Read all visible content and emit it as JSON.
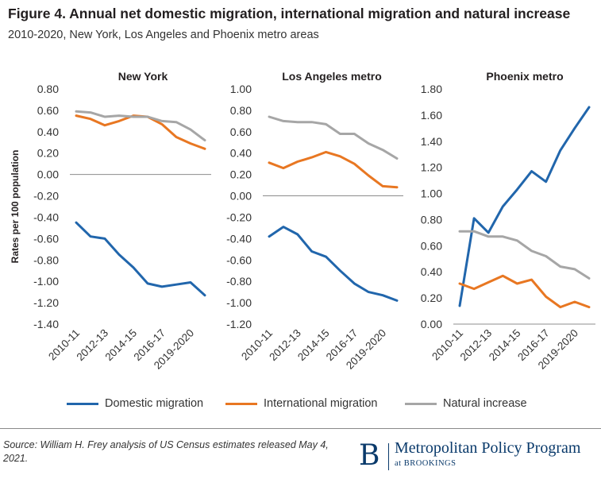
{
  "title": "Figure 4. Annual net domestic migration, international migration and natural increase",
  "subtitle": "2010-2020, New York, Los Angeles and Phoenix metro areas",
  "ylabel": "Rates per 100 population",
  "legend": [
    {
      "name": "Domestic migration",
      "color": "#2166ac"
    },
    {
      "name": "International migration",
      "color": "#e87722"
    },
    {
      "name": "Natural increase",
      "color": "#a6a6a6"
    }
  ],
  "source": "Source: William H. Frey analysis of US Census estimates released May 4, 2021.",
  "brand": {
    "logo": "B",
    "name": "Metropolitan Policy Program",
    "sub": "at BROOKINGS"
  },
  "chart_data": [
    {
      "type": "line",
      "title": "New York",
      "x_tick_labels": [
        "2010-11",
        "2012-13",
        "2014-15",
        "2016-17",
        "2019-2020"
      ],
      "yticks": [
        "0.80",
        "0.60",
        "0.40",
        "0.20",
        "0.00",
        "-0.20",
        "-0.40",
        "-0.60",
        "-0.80",
        "-1.00",
        "-1.20",
        "-1.40"
      ],
      "ylim": [
        -1.4,
        0.8
      ],
      "series": [
        {
          "name": "Domestic migration",
          "values": [
            -0.45,
            -0.58,
            -0.6,
            -0.75,
            -0.87,
            -1.02,
            -1.05,
            -1.03,
            -1.01,
            -1.13
          ]
        },
        {
          "name": "International migration",
          "values": [
            0.55,
            0.52,
            0.46,
            0.5,
            0.55,
            0.54,
            0.47,
            0.35,
            0.29,
            0.24
          ]
        },
        {
          "name": "Natural increase",
          "values": [
            0.59,
            0.58,
            0.54,
            0.55,
            0.54,
            0.54,
            0.5,
            0.49,
            0.42,
            0.32
          ]
        }
      ]
    },
    {
      "type": "line",
      "title": "Los Angeles metro",
      "x_tick_labels": [
        "2010-11",
        "2012-13",
        "2014-15",
        "2016-17",
        "2019-2020"
      ],
      "yticks": [
        "1.00",
        "0.80",
        "0.60",
        "0.40",
        "0.20",
        "0.00",
        "-0.20",
        "-0.40",
        "-0.60",
        "-0.80",
        "-1.00",
        "-1.20"
      ],
      "ylim": [
        -1.2,
        1.0
      ],
      "series": [
        {
          "name": "Domestic migration",
          "values": [
            -0.38,
            -0.29,
            -0.36,
            -0.52,
            -0.57,
            -0.7,
            -0.82,
            -0.9,
            -0.93,
            -0.98
          ]
        },
        {
          "name": "International migration",
          "values": [
            0.31,
            0.26,
            0.32,
            0.36,
            0.41,
            0.37,
            0.3,
            0.19,
            0.09,
            0.08
          ]
        },
        {
          "name": "Natural increase",
          "values": [
            0.74,
            0.7,
            0.69,
            0.69,
            0.67,
            0.58,
            0.58,
            0.49,
            0.43,
            0.35
          ]
        }
      ]
    },
    {
      "type": "line",
      "title": "Phoenix metro",
      "x_tick_labels": [
        "2010-11",
        "2012-13",
        "2014-15",
        "2016-17",
        "2019-2020"
      ],
      "yticks": [
        "1.80",
        "1.60",
        "1.40",
        "1.20",
        "1.00",
        "0.80",
        "0.60",
        "0.40",
        "0.20",
        "0.00"
      ],
      "ylim": [
        0,
        1.8
      ],
      "series": [
        {
          "name": "Domestic migration",
          "values": [
            0.14,
            0.81,
            0.7,
            0.9,
            1.03,
            1.17,
            1.09,
            1.33,
            1.5,
            1.66
          ]
        },
        {
          "name": "International migration",
          "values": [
            0.31,
            0.27,
            0.32,
            0.37,
            0.31,
            0.34,
            0.21,
            0.13,
            0.17,
            0.13
          ]
        },
        {
          "name": "Natural increase",
          "values": [
            0.71,
            0.71,
            0.67,
            0.67,
            0.64,
            0.56,
            0.52,
            0.44,
            0.42,
            0.35
          ]
        }
      ]
    }
  ]
}
